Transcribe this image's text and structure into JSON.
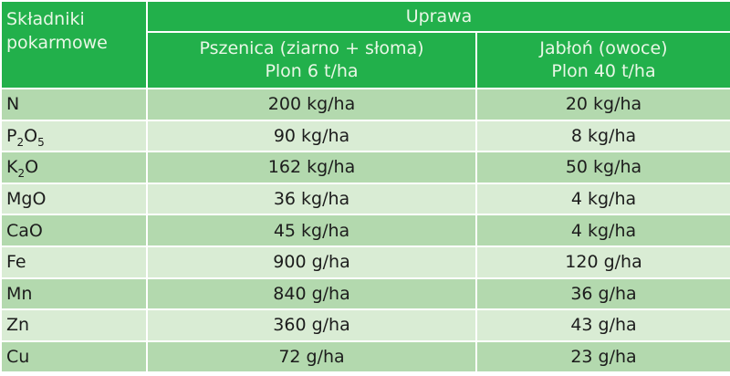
{
  "header": {
    "nutrients": "Składniki pokarmowe",
    "crop": "Uprawa",
    "col1": {
      "name": "Pszenica (ziarno + słoma)",
      "yield": "Plon 6 t/ha"
    },
    "col2": {
      "name": "Jabłoń (owoce)",
      "yield": "Plon 40 t/ha"
    }
  },
  "colors": {
    "header": "#22b04b",
    "row_dark": "#b3d9ae",
    "row_light": "#d9ecd4"
  },
  "rows": [
    {
      "nutrient": "N",
      "sub1": "",
      "mid": "",
      "sub2": "",
      "wheat": "200 kg/ha",
      "apple": "20 kg/ha"
    },
    {
      "nutrient": "P",
      "sub1": "2",
      "mid": "O",
      "sub2": "5",
      "wheat": "90 kg/ha",
      "apple": "8 kg/ha"
    },
    {
      "nutrient": "K",
      "sub1": "2",
      "mid": "O",
      "sub2": "",
      "wheat": "162 kg/ha",
      "apple": "50 kg/ha"
    },
    {
      "nutrient": "MgO",
      "sub1": "",
      "mid": "",
      "sub2": "",
      "wheat": "36 kg/ha",
      "apple": "4 kg/ha"
    },
    {
      "nutrient": "CaO",
      "sub1": "",
      "mid": "",
      "sub2": "",
      "wheat": "45 kg/ha",
      "apple": "4 kg/ha"
    },
    {
      "nutrient": "Fe",
      "sub1": "",
      "mid": "",
      "sub2": "",
      "wheat": "900 g/ha",
      "apple": "120 g/ha"
    },
    {
      "nutrient": "Mn",
      "sub1": "",
      "mid": "",
      "sub2": "",
      "wheat": "840 g/ha",
      "apple": "36 g/ha"
    },
    {
      "nutrient": "Zn",
      "sub1": "",
      "mid": "",
      "sub2": "",
      "wheat": "360 g/ha",
      "apple": "43 g/ha"
    },
    {
      "nutrient": "Cu",
      "sub1": "",
      "mid": "",
      "sub2": "",
      "wheat": "72 g/ha",
      "apple": "23 g/ha"
    }
  ]
}
